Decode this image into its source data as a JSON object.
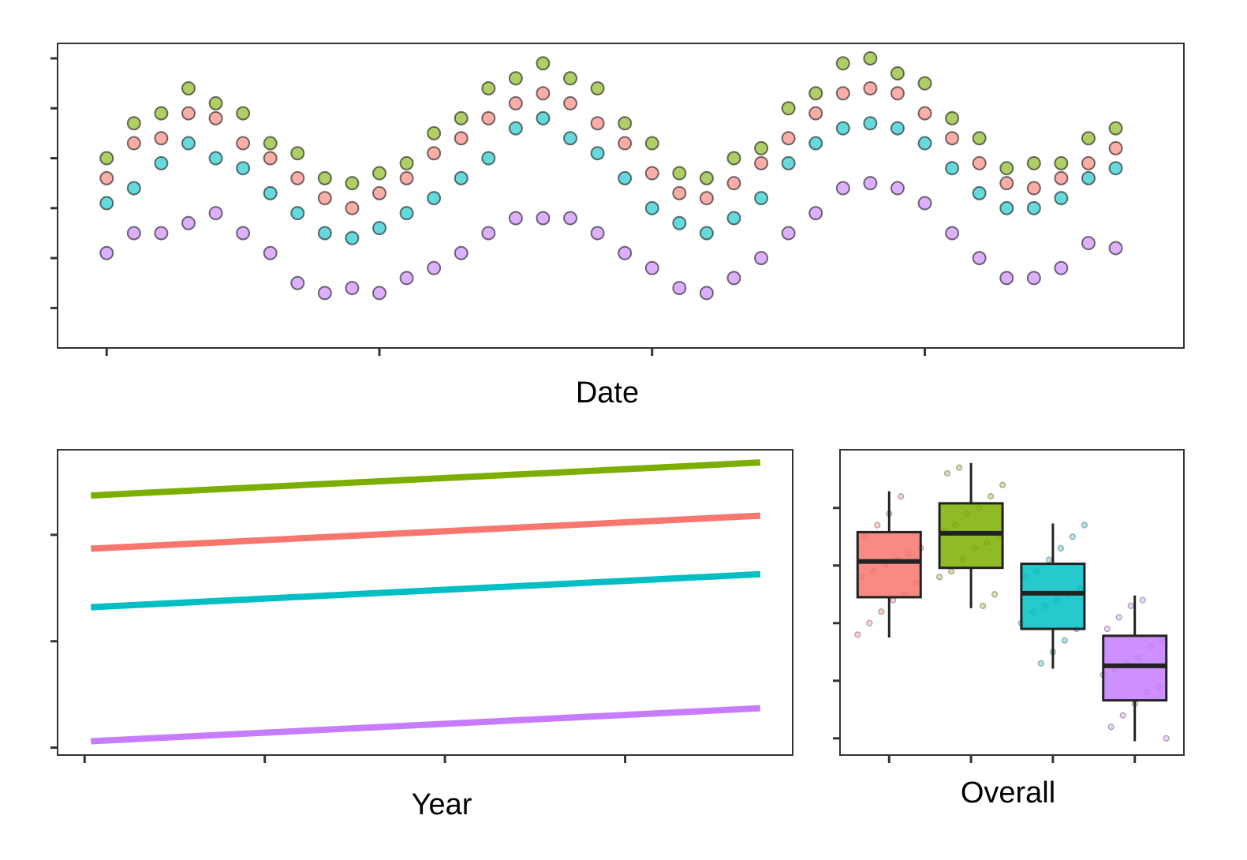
{
  "chart_data": [
    {
      "type": "scatter",
      "x_label": "Date",
      "xlim": [
        -0.18,
        3.95
      ],
      "xticks": [
        0,
        1,
        2,
        3
      ],
      "ylim": [
        -0.8,
        5.3
      ],
      "yticks": [
        0,
        1,
        2,
        3,
        4,
        5
      ],
      "x": [
        0,
        0.1,
        0.2,
        0.3,
        0.4,
        0.5,
        0.6,
        0.7,
        0.8,
        0.9,
        1.0,
        1.1,
        1.2,
        1.3,
        1.4,
        1.5,
        1.6,
        1.7,
        1.8,
        1.9,
        2.0,
        2.1,
        2.2,
        2.3,
        2.4,
        2.5,
        2.6,
        2.7,
        2.8,
        2.9,
        3.0,
        3.1,
        3.2,
        3.3,
        3.4,
        3.5,
        3.6,
        3.7
      ],
      "series": [
        {
          "color": "#F8766D",
          "values": [
            2.6,
            3.3,
            3.4,
            3.9,
            3.8,
            3.3,
            3.0,
            2.6,
            2.2,
            2.0,
            2.3,
            2.6,
            3.1,
            3.4,
            3.8,
            4.1,
            4.3,
            4.1,
            3.7,
            3.3,
            2.7,
            2.3,
            2.2,
            2.5,
            2.9,
            3.4,
            3.9,
            4.3,
            4.4,
            4.3,
            3.9,
            3.4,
            2.9,
            2.5,
            2.4,
            2.6,
            2.9,
            3.2
          ]
        },
        {
          "color": "#7CAE00",
          "values": [
            3.0,
            3.7,
            3.9,
            4.4,
            4.1,
            3.9,
            3.3,
            3.1,
            2.6,
            2.5,
            2.7,
            2.9,
            3.5,
            3.8,
            4.4,
            4.6,
            4.9,
            4.6,
            4.4,
            3.7,
            3.3,
            2.7,
            2.6,
            3.0,
            3.2,
            4.0,
            4.3,
            4.9,
            5.0,
            4.7,
            4.5,
            3.8,
            3.4,
            2.8,
            2.9,
            2.9,
            3.4,
            3.6
          ]
        },
        {
          "color": "#00BFC4",
          "values": [
            2.1,
            2.4,
            2.9,
            3.3,
            3.0,
            2.8,
            2.3,
            1.9,
            1.5,
            1.4,
            1.6,
            1.9,
            2.2,
            2.6,
            3.0,
            3.6,
            3.8,
            3.4,
            3.1,
            2.6,
            2.0,
            1.7,
            1.5,
            1.8,
            2.2,
            2.9,
            3.3,
            3.6,
            3.7,
            3.6,
            3.3,
            2.8,
            2.3,
            2.0,
            2.0,
            2.2,
            2.6,
            2.8
          ]
        },
        {
          "color": "#C77CFF",
          "values": [
            1.1,
            1.5,
            1.5,
            1.7,
            1.9,
            1.5,
            1.1,
            0.5,
            0.3,
            0.4,
            0.3,
            0.6,
            0.8,
            1.1,
            1.5,
            1.8,
            1.8,
            1.8,
            1.5,
            1.1,
            0.8,
            0.4,
            0.3,
            0.6,
            1.0,
            1.5,
            1.9,
            2.4,
            2.5,
            2.4,
            2.1,
            1.5,
            1.0,
            0.6,
            0.6,
            0.8,
            1.3,
            1.2
          ]
        }
      ]
    },
    {
      "type": "line",
      "x_label": "Year",
      "xlim": [
        -0.15,
        3.93
      ],
      "xticks": [
        0,
        1,
        2,
        3
      ],
      "ylim": [
        -0.07,
        2.8
      ],
      "yticks": [
        0,
        1,
        2
      ],
      "x": [
        0.035,
        3.75
      ],
      "series": [
        {
          "color": "#7CAE00",
          "values": [
            2.37,
            2.68
          ]
        },
        {
          "color": "#F8766D",
          "values": [
            1.87,
            2.18
          ]
        },
        {
          "color": "#00BFC4",
          "values": [
            1.32,
            1.63
          ]
        },
        {
          "color": "#C77CFF",
          "values": [
            0.06,
            0.37
          ]
        }
      ]
    },
    {
      "type": "box",
      "x_label": "Overall",
      "xlim": [
        0.4,
        4.6
      ],
      "xticks": [
        1,
        2,
        3,
        4
      ],
      "ylim": [
        -0.29,
        5.01
      ],
      "yticks": [
        0,
        1,
        2,
        3,
        4
      ],
      "boxes": [
        {
          "color": "#F8766D",
          "whisker_low": 1.75,
          "q1": 2.45,
          "median": 3.07,
          "q3": 3.58,
          "whisker_high": 4.29,
          "points": [
            1.8,
            2.0,
            2.2,
            2.4,
            2.5,
            2.7,
            2.8,
            2.9,
            3.0,
            3.1,
            3.2,
            3.3,
            3.5,
            3.7,
            3.9,
            4.2
          ]
        },
        {
          "color": "#7CAE00",
          "whisker_low": 2.26,
          "q1": 2.96,
          "median": 3.56,
          "q3": 4.08,
          "whisker_high": 4.78,
          "points": [
            2.3,
            2.5,
            2.8,
            2.9,
            3.1,
            3.3,
            3.4,
            3.5,
            3.6,
            3.7,
            3.9,
            4.0,
            4.2,
            4.4,
            4.6,
            4.7
          ]
        },
        {
          "color": "#00BFC4",
          "whisker_low": 1.21,
          "q1": 1.9,
          "median": 2.52,
          "q3": 3.03,
          "whisker_high": 3.73,
          "points": [
            1.3,
            1.5,
            1.7,
            1.9,
            2.0,
            2.2,
            2.3,
            2.4,
            2.5,
            2.6,
            2.8,
            2.9,
            3.1,
            3.3,
            3.5,
            3.7
          ]
        },
        {
          "color": "#C77CFF",
          "whisker_low": -0.05,
          "q1": 0.66,
          "median": 1.26,
          "q3": 1.78,
          "whisker_high": 2.48,
          "points": [
            0.0,
            0.2,
            0.4,
            0.6,
            0.8,
            0.9,
            1.1,
            1.2,
            1.3,
            1.4,
            1.6,
            1.7,
            1.9,
            2.1,
            2.3,
            2.4
          ]
        }
      ]
    }
  ]
}
